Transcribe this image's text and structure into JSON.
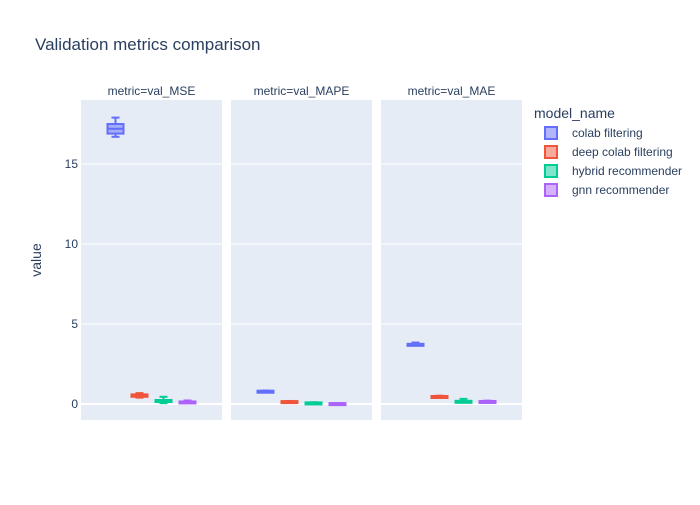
{
  "chart_data": {
    "type": "box",
    "title": "Validation metrics comparison",
    "ylabel": "value",
    "xlabel": "",
    "ylim": [
      -1,
      19
    ],
    "yticks": [
      0,
      5,
      10,
      15
    ],
    "grid": true,
    "legend_title": "model_name",
    "legend_position": "right",
    "facets": [
      "metric=val_MSE",
      "metric=val_MAPE",
      "metric=val_MAE"
    ],
    "series": [
      {
        "name": "colab filtering",
        "color": "#636efa",
        "boxes": [
          {
            "min": 16.7,
            "q1": 16.9,
            "median": 17.2,
            "q3": 17.5,
            "max": 17.9
          },
          {
            "min": 0.8,
            "q1": 0.81,
            "median": 0.82,
            "q3": 0.83,
            "max": 0.84
          },
          {
            "min": 3.7,
            "q1": 3.72,
            "median": 3.74,
            "q3": 3.76,
            "max": 3.84
          }
        ]
      },
      {
        "name": "deep colab filtering",
        "color": "#ef553b",
        "boxes": [
          {
            "min": 0.4,
            "q1": 0.45,
            "median": 0.55,
            "q3": 0.6,
            "max": 0.68
          },
          {
            "min": 0.15,
            "q1": 0.16,
            "median": 0.17,
            "q3": 0.18,
            "max": 0.19
          },
          {
            "min": 0.45,
            "q1": 0.47,
            "median": 0.49,
            "q3": 0.5,
            "max": 0.52
          }
        ]
      },
      {
        "name": "hybrid recommender",
        "color": "#00cc96",
        "boxes": [
          {
            "min": 0.05,
            "q1": 0.18,
            "median": 0.22,
            "q3": 0.25,
            "max": 0.45
          },
          {
            "min": 0.07,
            "q1": 0.08,
            "median": 0.09,
            "q3": 0.1,
            "max": 0.11
          },
          {
            "min": 0.14,
            "q1": 0.16,
            "median": 0.18,
            "q3": 0.2,
            "max": 0.32
          }
        ]
      },
      {
        "name": "gnn recommender",
        "color": "#ab63fa",
        "boxes": [
          {
            "min": 0.08,
            "q1": 0.11,
            "median": 0.13,
            "q3": 0.16,
            "max": 0.22
          },
          {
            "min": 0.04,
            "q1": 0.045,
            "median": 0.05,
            "q3": 0.055,
            "max": 0.06
          },
          {
            "min": 0.13,
            "q1": 0.15,
            "median": 0.17,
            "q3": 0.19,
            "max": 0.21
          }
        ]
      }
    ]
  }
}
